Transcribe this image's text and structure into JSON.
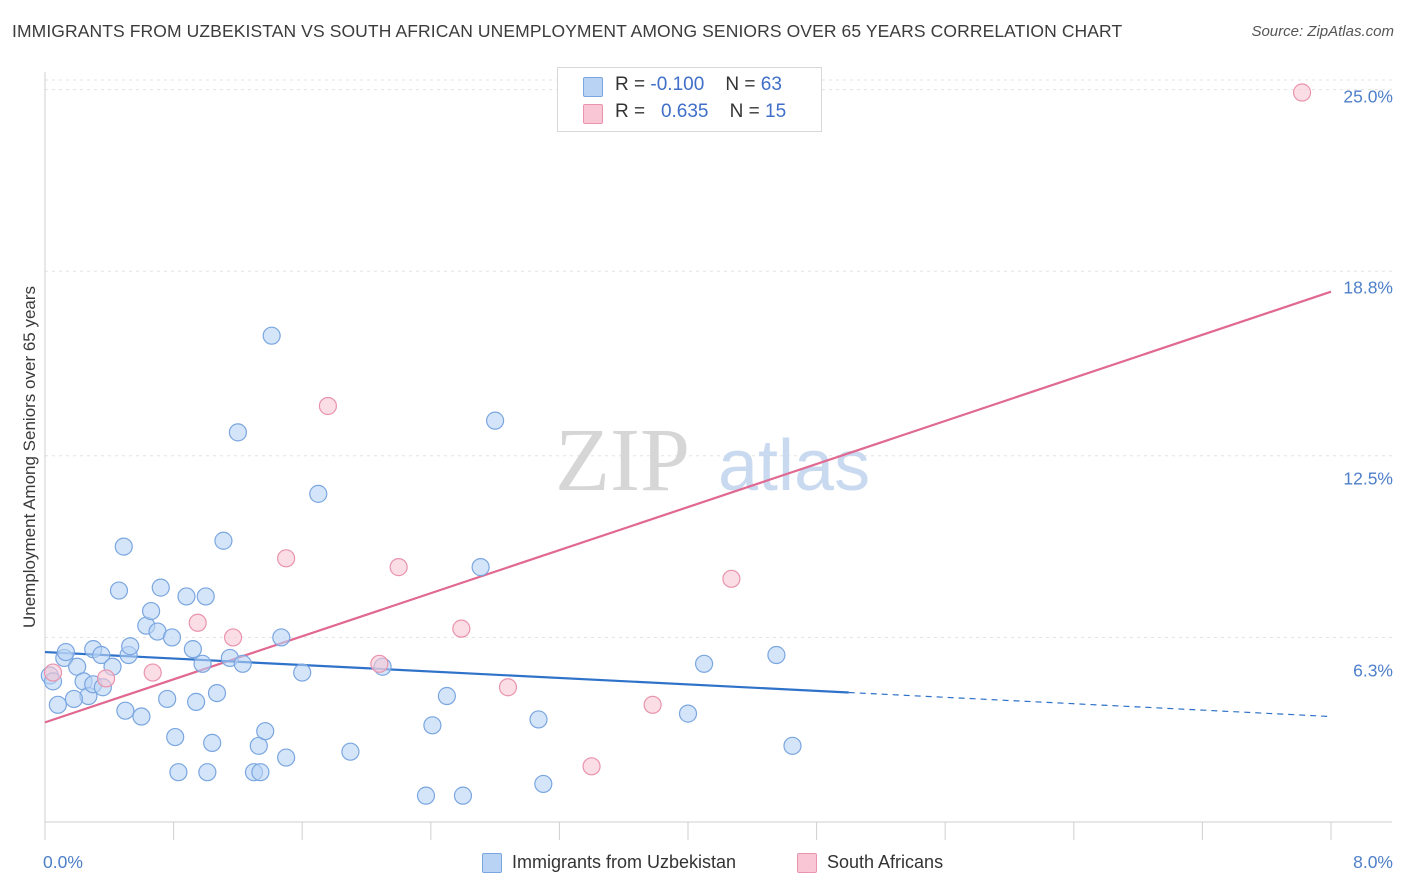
{
  "title": "IMMIGRANTS FROM UZBEKISTAN VS SOUTH AFRICAN UNEMPLOYMENT AMONG SENIORS OVER 65 YEARS CORRELATION CHART",
  "source": "Source: ZipAtlas.com",
  "watermark": {
    "zip": "ZIP",
    "atlas": "atlas"
  },
  "legend": {
    "series1": {
      "r_label": "R =",
      "r_value": "-0.100",
      "n_label": "N =",
      "n_value": "63"
    },
    "series2": {
      "r_label": "R =",
      "r_value": "0.635",
      "n_label": "N =",
      "n_value": "15"
    }
  },
  "bottom_legend": {
    "series1": "Immigrants from Uzbekistan",
    "series2": "South Africans"
  },
  "colors": {
    "blue_fill": "#b9d3f5",
    "blue_stroke": "#7aa6e0",
    "blue_line": "#2f72c9",
    "pink_fill": "#f8c6d4",
    "pink_stroke": "#ea93ad",
    "pink_line": "#e06891",
    "grid": "#e3e3e3",
    "axis_text": "#4e7fc9"
  },
  "chart_data": {
    "type": "scatter",
    "title": "IMMIGRANTS FROM UZBEKISTAN VS SOUTH AFRICAN UNEMPLOYMENT AMONG SENIORS OVER 65 YEARS CORRELATION CHART",
    "xlabel": "",
    "ylabel": "Unemployment Among Seniors over 65 years",
    "xlim": [
      0,
      8.0
    ],
    "ylim": [
      0,
      25.6
    ],
    "x_tick_labels": [
      "0.0%",
      "8.0%"
    ],
    "y_ticks": [
      6.3,
      12.5,
      18.8,
      25.0
    ],
    "y_tick_labels": [
      "6.3%",
      "12.5%",
      "18.8%",
      "25.0%"
    ],
    "series": [
      {
        "name": "Immigrants from Uzbekistan",
        "color": "#b9d3f5",
        "points": [
          [
            0.03,
            5.0
          ],
          [
            0.08,
            4.0
          ],
          [
            0.12,
            5.6
          ],
          [
            0.13,
            5.8
          ],
          [
            0.2,
            5.3
          ],
          [
            0.24,
            4.8
          ],
          [
            0.27,
            4.3
          ],
          [
            0.3,
            4.7
          ],
          [
            0.3,
            5.9
          ],
          [
            0.35,
            5.7
          ],
          [
            0.36,
            4.6
          ],
          [
            0.42,
            5.3
          ],
          [
            0.46,
            7.9
          ],
          [
            0.5,
            3.8
          ],
          [
            0.49,
            9.4
          ],
          [
            0.52,
            5.7
          ],
          [
            0.53,
            6.0
          ],
          [
            0.6,
            3.6
          ],
          [
            0.63,
            6.7
          ],
          [
            0.66,
            7.2
          ],
          [
            0.7,
            6.5
          ],
          [
            0.72,
            8.0
          ],
          [
            0.76,
            4.2
          ],
          [
            0.79,
            6.3
          ],
          [
            0.81,
            2.9
          ],
          [
            0.83,
            1.7
          ],
          [
            0.88,
            7.7
          ],
          [
            0.92,
            5.9
          ],
          [
            0.94,
            4.1
          ],
          [
            0.98,
            5.4
          ],
          [
            1.0,
            7.7
          ],
          [
            1.01,
            1.7
          ],
          [
            1.04,
            2.7
          ],
          [
            1.07,
            4.4
          ],
          [
            1.11,
            9.6
          ],
          [
            1.15,
            5.6
          ],
          [
            1.2,
            13.3
          ],
          [
            1.23,
            5.4
          ],
          [
            1.3,
            1.7
          ],
          [
            1.33,
            2.6
          ],
          [
            1.34,
            1.7
          ],
          [
            1.37,
            3.1
          ],
          [
            1.41,
            16.6
          ],
          [
            1.47,
            6.3
          ],
          [
            1.5,
            2.2
          ],
          [
            1.7,
            11.2
          ],
          [
            1.6,
            5.1
          ],
          [
            1.9,
            2.4
          ],
          [
            2.1,
            5.3
          ],
          [
            2.37,
            0.9
          ],
          [
            2.41,
            3.3
          ],
          [
            2.5,
            4.3
          ],
          [
            2.6,
            0.9
          ],
          [
            2.71,
            8.7
          ],
          [
            2.8,
            13.7
          ],
          [
            3.07,
            3.5
          ],
          [
            3.1,
            1.3
          ],
          [
            4.0,
            3.7
          ],
          [
            4.1,
            5.4
          ],
          [
            4.55,
            5.7
          ],
          [
            4.65,
            2.6
          ],
          [
            0.05,
            4.8
          ],
          [
            0.18,
            4.2
          ]
        ]
      },
      {
        "name": "South Africans",
        "color": "#f8c6d4",
        "points": [
          [
            0.05,
            5.1
          ],
          [
            0.38,
            4.9
          ],
          [
            0.67,
            5.1
          ],
          [
            0.95,
            6.8
          ],
          [
            1.17,
            6.3
          ],
          [
            1.5,
            9.0
          ],
          [
            1.76,
            14.2
          ],
          [
            2.08,
            5.4
          ],
          [
            2.2,
            8.7
          ],
          [
            2.59,
            6.6
          ],
          [
            2.88,
            4.6
          ],
          [
            3.4,
            1.9
          ],
          [
            3.78,
            4.0
          ],
          [
            4.27,
            8.3
          ],
          [
            7.82,
            24.9
          ]
        ]
      }
    ],
    "trend_lines": [
      {
        "series": "Immigrants from Uzbekistan",
        "x": [
          0,
          5.0
        ],
        "y": [
          5.8,
          4.42
        ],
        "dashed_extension": {
          "x": [
            5.0,
            8.0
          ],
          "y": [
            4.42,
            3.6
          ]
        }
      },
      {
        "series": "South Africans",
        "x": [
          0,
          8.0
        ],
        "y": [
          3.4,
          18.1
        ]
      }
    ]
  }
}
